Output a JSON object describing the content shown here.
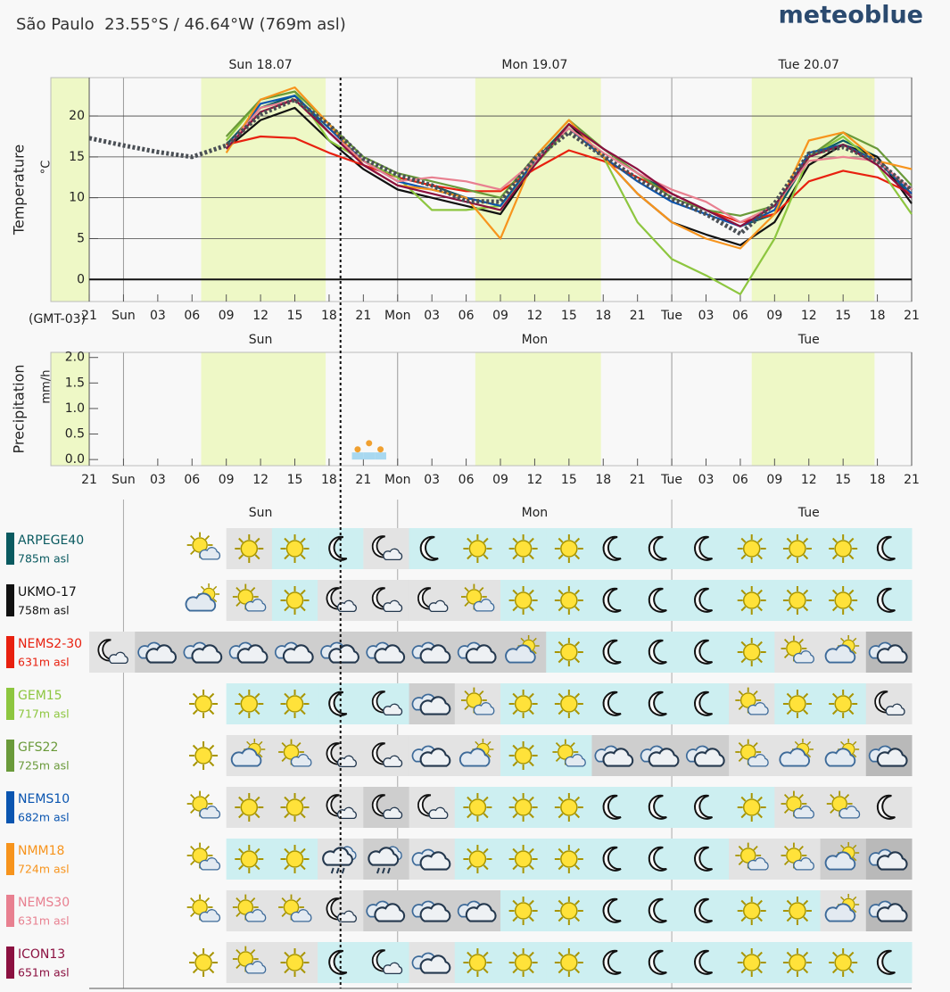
{
  "header": {
    "title": "São Paulo  23.55°S / 46.64°W (769m asl)",
    "logo": "meteoblue"
  },
  "chart_data": [
    {
      "type": "line",
      "ylabel": "Temperature",
      "yunit": "°C",
      "timezone": "(GMT-03)",
      "day_labels": [
        "Sun 18.07",
        "Mon 19.07",
        "Tue 20.07"
      ],
      "day_boundaries": [
        3,
        27,
        51
      ],
      "daylight": [
        [
          -3.36,
          0
        ],
        [
          9.8,
          20.7
        ],
        [
          33.8,
          44.8
        ],
        [
          58,
          68.75
        ]
      ],
      "current_time": 22,
      "xlim": [
        -3.36,
        72
      ],
      "ylim": [
        -2.7,
        24.7
      ],
      "yticks": [
        0,
        5,
        10,
        15,
        20
      ],
      "xticks": [
        {
          "value": 0,
          "label": "21"
        },
        {
          "value": 3,
          "label": "Sun"
        },
        {
          "value": 6,
          "label": "03"
        },
        {
          "value": 9,
          "label": "06"
        },
        {
          "value": 12,
          "label": "09"
        },
        {
          "value": 15,
          "label": "12"
        },
        {
          "value": 18,
          "label": "15"
        },
        {
          "value": 21,
          "label": "18"
        },
        {
          "value": 24,
          "label": "21"
        },
        {
          "value": 27,
          "label": "Mon"
        },
        {
          "value": 30,
          "label": "03"
        },
        {
          "value": 33,
          "label": "06"
        },
        {
          "value": 36,
          "label": "09"
        },
        {
          "value": 39,
          "label": "12"
        },
        {
          "value": 42,
          "label": "15"
        },
        {
          "value": 45,
          "label": "18"
        },
        {
          "value": 48,
          "label": "21"
        },
        {
          "value": 51,
          "label": "Tue"
        },
        {
          "value": 54,
          "label": "03"
        },
        {
          "value": 57,
          "label": "06"
        },
        {
          "value": 60,
          "label": "09"
        },
        {
          "value": 63,
          "label": "12"
        },
        {
          "value": 66,
          "label": "15"
        },
        {
          "value": 69,
          "label": "18"
        },
        {
          "value": 72,
          "label": "21"
        }
      ],
      "x": [
        0,
        3,
        6,
        9,
        12,
        15,
        18,
        21,
        24,
        27,
        30,
        33,
        36,
        39,
        42,
        45,
        48,
        51,
        54,
        57,
        60,
        63,
        66,
        69,
        72
      ],
      "series": [
        {
          "color": "#0a5a60",
          "values": [
            null,
            null,
            null,
            null,
            16.5,
            21,
            22.5,
            18,
            14.5,
            12.5,
            11.5,
            10,
            9,
            14.5,
            19,
            16,
            13,
            10.5,
            8.5,
            6.5,
            8,
            15,
            17,
            15,
            10
          ]
        },
        {
          "color": "#111111",
          "values": [
            null,
            null,
            null,
            null,
            16,
            19.5,
            21,
            17,
            13.5,
            11,
            10,
            9,
            8,
            14,
            19,
            15,
            10.5,
            7,
            5.5,
            4.2,
            7,
            14,
            16.5,
            15,
            9.3
          ]
        },
        {
          "color": "#e8200f",
          "values": [
            null,
            null,
            null,
            null,
            16.5,
            17.5,
            17.3,
            15.5,
            14,
            12.5,
            11.5,
            10.8,
            10.8,
            13.5,
            15.8,
            14.5,
            12.5,
            10.5,
            8.5,
            7,
            8,
            12,
            13.3,
            12.5,
            10.5
          ]
        },
        {
          "color": "#8dc63f",
          "values": [
            null,
            null,
            null,
            null,
            17,
            22,
            23,
            17,
            14.5,
            12.5,
            8.5,
            8.5,
            9,
            14,
            18.5,
            15,
            7,
            2.5,
            0.5,
            -1.8,
            5,
            15,
            17.5,
            14,
            8
          ]
        },
        {
          "color": "#6a9a3a",
          "values": [
            null,
            null,
            null,
            null,
            17.5,
            22,
            23,
            19,
            15,
            13,
            12,
            11,
            10,
            15,
            19.5,
            16,
            13,
            10,
            8.5,
            7.8,
            9,
            15,
            18,
            16,
            11.5
          ]
        },
        {
          "color": "#0a55b0",
          "values": [
            null,
            null,
            null,
            null,
            16,
            21.5,
            22.5,
            18.5,
            14.5,
            12,
            11,
            10,
            9,
            14.5,
            18.5,
            15,
            12,
            9.5,
            8,
            6.5,
            8.5,
            15.5,
            16.5,
            14.5,
            10.5
          ]
        },
        {
          "color": "#f7941d",
          "values": [
            null,
            null,
            null,
            null,
            15.5,
            22,
            23.5,
            19,
            14,
            11.5,
            11,
            10,
            5,
            15,
            19.5,
            15,
            10.5,
            7,
            5,
            3.8,
            8,
            17,
            18,
            14.5,
            13.5
          ]
        },
        {
          "color": "#e88090",
          "values": [
            null,
            null,
            null,
            null,
            16,
            21,
            22,
            18,
            14.5,
            12,
            12.5,
            12,
            11,
            14.5,
            18.5,
            15.5,
            13,
            11,
            9.5,
            7,
            9,
            14.5,
            15,
            14.5,
            11
          ]
        },
        {
          "color": "#8b1040",
          "values": [
            null,
            null,
            null,
            null,
            16,
            20.5,
            22,
            18,
            14,
            11.5,
            10.5,
            9.5,
            8.5,
            14,
            19,
            16,
            13.5,
            10.5,
            8.5,
            6.5,
            9,
            15,
            16.5,
            14,
            10
          ]
        },
        {
          "color": "#4a4f55",
          "dashed": true,
          "values": [
            17.3,
            16.4,
            15.6,
            15,
            16.4,
            20.2,
            22,
            18.9,
            14.8,
            12.8,
            11.5,
            9.6,
            9.5,
            14.8,
            18,
            15.1,
            12.3,
            9.9,
            8,
            5.6,
            9.3,
            15.4,
            16.2,
            14.5,
            10.9
          ]
        }
      ]
    },
    {
      "type": "bar",
      "ylabel": "Precipitation",
      "yunit": "mm/h",
      "day_labels": [
        "Sun",
        "Mon",
        "Tue"
      ],
      "xlim": [
        -3.36,
        72
      ],
      "ylim": [
        -0.12,
        2.1
      ],
      "yticks": [
        {
          "value": 0,
          "label": "0.0"
        },
        0.5,
        {
          "value": 1,
          "label": "1.0"
        },
        1.5,
        {
          "value": 2,
          "label": "2.0"
        }
      ],
      "xticks": [
        {
          "value": 0,
          "label": "21"
        },
        {
          "value": 3,
          "label": "Sun"
        },
        {
          "value": 6,
          "label": "03"
        },
        {
          "value": 9,
          "label": "06"
        },
        {
          "value": 12,
          "label": "09"
        },
        {
          "value": 15,
          "label": "12"
        },
        {
          "value": 18,
          "label": "15"
        },
        {
          "value": 21,
          "label": "18"
        },
        {
          "value": 24,
          "label": "21"
        },
        {
          "value": 27,
          "label": "Mon"
        },
        {
          "value": 30,
          "label": "03"
        },
        {
          "value": 33,
          "label": "06"
        },
        {
          "value": 36,
          "label": "09"
        },
        {
          "value": 39,
          "label": "12"
        },
        {
          "value": 42,
          "label": "15"
        },
        {
          "value": 45,
          "label": "18"
        },
        {
          "value": 48,
          "label": "21"
        },
        {
          "value": 51,
          "label": "Tue"
        },
        {
          "value": 54,
          "label": "03"
        },
        {
          "value": 57,
          "label": "06"
        },
        {
          "value": 60,
          "label": "09"
        },
        {
          "value": 63,
          "label": "12"
        },
        {
          "value": 66,
          "label": "15"
        },
        {
          "value": 69,
          "label": "18"
        },
        {
          "value": 72,
          "label": "21"
        }
      ],
      "x": [
        23.5,
        24.5,
        25.5
      ],
      "values": [
        0.14,
        0.14,
        0.14
      ],
      "spread": [
        0.2,
        0.32,
        0.2
      ],
      "color": "#a8d8f0",
      "spread_color": "#f0a030"
    }
  ],
  "forecast": {
    "day_labels": [
      "Sun",
      "Mon",
      "Tue"
    ],
    "models": [
      {
        "name": "ARPEGE40",
        "elevation": "785m asl",
        "color": "#0a5a60",
        "icons": [
          null,
          null,
          "sun-cloud",
          "sun",
          "sun",
          "moon",
          "moon-cloud",
          "moon",
          "sun",
          "sun",
          "sun",
          "moon",
          "moon",
          "moon",
          "sun",
          "sun",
          "sun",
          "moon"
        ],
        "backgrounds": [
          null,
          null,
          null,
          "light",
          "clear",
          "clear",
          "light",
          "clear",
          "clear",
          "clear",
          "clear",
          "clear",
          "clear",
          "clear",
          "clear",
          "clear",
          "clear",
          "clear"
        ]
      },
      {
        "name": "UKMO-17",
        "elevation": "758m asl",
        "color": "#111111",
        "icons": [
          null,
          null,
          "cloud-sun",
          "sun-cloud",
          "sun",
          "moon-cloud",
          "moon-cloud",
          "moon-cloud",
          "sun-cloud",
          "sun",
          "sun",
          "moon",
          "moon",
          "moon",
          "sun",
          "sun",
          "sun",
          "moon"
        ],
        "backgrounds": [
          null,
          null,
          null,
          "light",
          "clear",
          "light",
          "light",
          "light",
          "light",
          "clear",
          "clear",
          "clear",
          "clear",
          "clear",
          "clear",
          "clear",
          "clear",
          "clear"
        ]
      },
      {
        "name": "NEMS2-30",
        "elevation": "631m asl",
        "color": "#e8200f",
        "icons": [
          "moon-cloud",
          "cloud",
          "cloud",
          "cloud",
          "cloud",
          "cloud",
          "cloud",
          "cloud",
          "cloud",
          "cloud-sun",
          "sun",
          "moon",
          "moon",
          "moon",
          "sun",
          "sun-cloud",
          "cloud-sun",
          "cloud"
        ],
        "backgrounds": [
          "light",
          "mid",
          "mid",
          "mid",
          "mid",
          "mid",
          "mid",
          "mid",
          "mid",
          "mid",
          "clear",
          "clear",
          "clear",
          "clear",
          "clear",
          "light",
          "light",
          "dark"
        ]
      },
      {
        "name": "GEM15",
        "elevation": "717m asl",
        "color": "#8dc63f",
        "icons": [
          null,
          null,
          "sun",
          "sun",
          "sun",
          "moon",
          "moon-cloud",
          "cloud",
          "sun-cloud",
          "sun",
          "sun",
          "moon",
          "moon",
          "moon",
          "sun-cloud",
          "sun",
          "sun",
          "moon-cloud"
        ],
        "backgrounds": [
          null,
          null,
          null,
          "clear",
          "clear",
          "clear",
          "clear",
          "mid",
          "light",
          "clear",
          "clear",
          "clear",
          "clear",
          "clear",
          "light",
          "clear",
          "clear",
          "light"
        ]
      },
      {
        "name": "GFS22",
        "elevation": "725m asl",
        "color": "#6a9a3a",
        "icons": [
          null,
          null,
          "sun",
          "cloud-sun",
          "sun-cloud",
          "moon-cloud",
          "moon-cloud",
          "cloud",
          "cloud-sun",
          "sun",
          "sun-cloud",
          "cloud",
          "cloud",
          "cloud",
          "sun-cloud",
          "cloud-sun",
          "cloud-sun",
          "cloud"
        ],
        "backgrounds": [
          null,
          null,
          null,
          "light",
          "light",
          "light",
          "light",
          "light",
          "light",
          "clear",
          "clear",
          "mid",
          "mid",
          "mid",
          "light",
          "light",
          "light",
          "dark"
        ]
      },
      {
        "name": "NEMS10",
        "elevation": "682m asl",
        "color": "#0a55b0",
        "icons": [
          null,
          null,
          "sun-cloud",
          "sun",
          "sun",
          "moon-cloud",
          "moon-cloud",
          "moon-cloud",
          "sun",
          "sun",
          "sun",
          "moon",
          "moon",
          "moon",
          "sun",
          "sun-cloud",
          "sun-cloud",
          "moon"
        ],
        "backgrounds": [
          null,
          null,
          null,
          "light",
          "light",
          "light",
          "mid",
          "light",
          "clear",
          "clear",
          "clear",
          "clear",
          "clear",
          "clear",
          "clear",
          "light",
          "light",
          "light"
        ]
      },
      {
        "name": "NMM18",
        "elevation": "724m asl",
        "color": "#f7941d",
        "icons": [
          null,
          null,
          "sun-cloud",
          "sun",
          "sun",
          "rain",
          "rain",
          "cloud",
          "sun",
          "sun",
          "sun",
          "moon",
          "moon",
          "moon",
          "sun-cloud",
          "sun-cloud",
          "cloud-sun",
          "cloud"
        ],
        "backgrounds": [
          null,
          null,
          null,
          "clear",
          "clear",
          "light",
          "mid",
          "light",
          "clear",
          "clear",
          "clear",
          "clear",
          "clear",
          "clear",
          "light",
          "light",
          "mid",
          "dark"
        ]
      },
      {
        "name": "NEMS30",
        "elevation": "631m asl",
        "color": "#e88090",
        "icons": [
          null,
          null,
          "sun-cloud",
          "sun-cloud",
          "sun-cloud",
          "moon-cloud",
          "cloud",
          "cloud",
          "cloud",
          "sun",
          "sun",
          "moon",
          "moon",
          "moon",
          "sun",
          "sun",
          "cloud-sun",
          "cloud"
        ],
        "backgrounds": [
          null,
          null,
          null,
          "light",
          "light",
          "light",
          "mid",
          "mid",
          "mid",
          "clear",
          "clear",
          "clear",
          "clear",
          "clear",
          "clear",
          "clear",
          "light",
          "dark"
        ]
      },
      {
        "name": "ICON13",
        "elevation": "651m asl",
        "color": "#8b1040",
        "icons": [
          null,
          null,
          "sun",
          "sun-cloud",
          "sun",
          "moon",
          "moon-cloud",
          "cloud",
          "sun",
          "sun",
          "sun",
          "moon",
          "moon",
          "moon",
          "sun",
          "sun",
          "sun",
          "moon"
        ],
        "backgrounds": [
          null,
          null,
          null,
          "light",
          "light",
          "clear",
          "clear",
          "light",
          "clear",
          "clear",
          "clear",
          "clear",
          "clear",
          "clear",
          "clear",
          "clear",
          "clear",
          "clear"
        ]
      }
    ]
  }
}
